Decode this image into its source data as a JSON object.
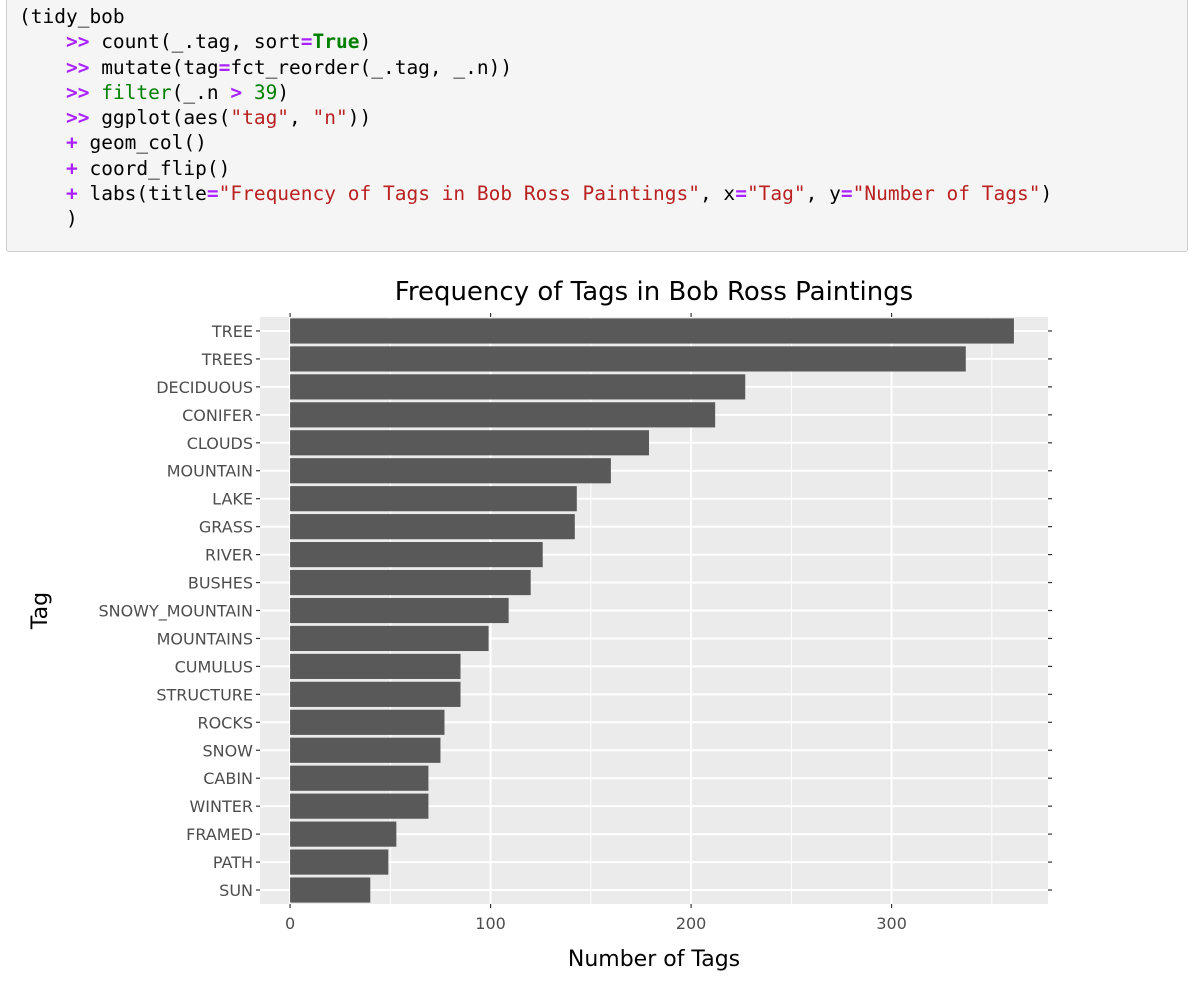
{
  "code": {
    "lines": [
      [
        {
          "t": "(tidy_bob",
          "c": ""
        }
      ],
      [
        {
          "t": "    ",
          "c": ""
        },
        {
          "t": ">>",
          "c": "op"
        },
        {
          "t": " count(_.tag, sort",
          "c": ""
        },
        {
          "t": "=",
          "c": "op"
        },
        {
          "t": "True",
          "c": "kw"
        },
        {
          "t": ")",
          "c": ""
        }
      ],
      [
        {
          "t": "    ",
          "c": ""
        },
        {
          "t": ">>",
          "c": "op"
        },
        {
          "t": " mutate(tag",
          "c": ""
        },
        {
          "t": "=",
          "c": "op"
        },
        {
          "t": "fct_reorder(_.tag, _.n))",
          "c": ""
        }
      ],
      [
        {
          "t": "    ",
          "c": ""
        },
        {
          "t": ">>",
          "c": "op"
        },
        {
          "t": " ",
          "c": ""
        },
        {
          "t": "filter",
          "c": "fn"
        },
        {
          "t": "(_.n ",
          "c": ""
        },
        {
          "t": ">",
          "c": "op"
        },
        {
          "t": " ",
          "c": ""
        },
        {
          "t": "39",
          "c": "num"
        },
        {
          "t": ")",
          "c": ""
        }
      ],
      [
        {
          "t": "    ",
          "c": ""
        },
        {
          "t": ">>",
          "c": "op"
        },
        {
          "t": " ggplot(aes(",
          "c": ""
        },
        {
          "t": "\"tag\"",
          "c": "str"
        },
        {
          "t": ", ",
          "c": ""
        },
        {
          "t": "\"n\"",
          "c": "str"
        },
        {
          "t": "))",
          "c": ""
        }
      ],
      [
        {
          "t": "    ",
          "c": ""
        },
        {
          "t": "+",
          "c": "op"
        },
        {
          "t": " geom_col()",
          "c": ""
        }
      ],
      [
        {
          "t": "    ",
          "c": ""
        },
        {
          "t": "+",
          "c": "op"
        },
        {
          "t": " coord_flip()",
          "c": ""
        }
      ],
      [
        {
          "t": "    ",
          "c": ""
        },
        {
          "t": "+",
          "c": "op"
        },
        {
          "t": " labs(title",
          "c": ""
        },
        {
          "t": "=",
          "c": "op"
        },
        {
          "t": "\"Frequency of Tags in Bob Ross Paintings\"",
          "c": "str"
        },
        {
          "t": ", x",
          "c": ""
        },
        {
          "t": "=",
          "c": "op"
        },
        {
          "t": "\"Tag\"",
          "c": "str"
        },
        {
          "t": ", y",
          "c": ""
        },
        {
          "t": "=",
          "c": "op"
        },
        {
          "t": "\"Number of Tags\"",
          "c": "str"
        },
        {
          "t": ")",
          "c": ""
        }
      ],
      [
        {
          "t": "    )",
          "c": ""
        }
      ]
    ]
  },
  "chart_data": {
    "type": "bar",
    "orientation": "horizontal",
    "title": "Frequency of Tags in Bob Ross Paintings",
    "xlabel": "Number of Tags",
    "ylabel": "Tag",
    "categories": [
      "TREE",
      "TREES",
      "DECIDUOUS",
      "CONIFER",
      "CLOUDS",
      "MOUNTAIN",
      "LAKE",
      "GRASS",
      "RIVER",
      "BUSHES",
      "SNOWY_MOUNTAIN",
      "MOUNTAINS",
      "CUMULUS",
      "STRUCTURE",
      "ROCKS",
      "SNOW",
      "CABIN",
      "WINTER",
      "FRAMED",
      "PATH",
      "SUN"
    ],
    "values": [
      361,
      337,
      227,
      212,
      179,
      160,
      143,
      142,
      126,
      120,
      109,
      99,
      85,
      85,
      77,
      75,
      69,
      69,
      53,
      49,
      40
    ],
    "xticks": [
      0,
      100,
      200,
      300
    ],
    "xlim": [
      -15,
      378
    ],
    "grid": true,
    "colors": {
      "bar": "#595959",
      "panel": "#ebebeb",
      "grid": "#ffffff",
      "text": "#4d4d4d",
      "title": "#000000"
    }
  }
}
